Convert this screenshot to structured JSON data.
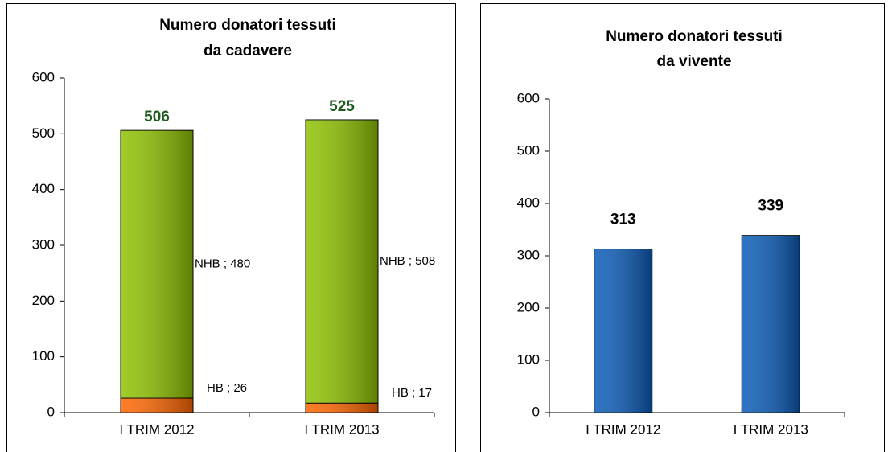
{
  "chart_data": [
    {
      "type": "stacked_bar",
      "title": [
        "Numero donatori tessuti",
        "da cadavere"
      ],
      "categories": [
        "I TRIM 2012",
        "I TRIM 2013"
      ],
      "series": [
        {
          "name": "HB",
          "color": "#ff6600",
          "values": [
            26,
            17
          ],
          "value_labels": [
            "HB ; 26",
            "HB ; 17"
          ]
        },
        {
          "name": "NHB",
          "color": "#8fc200",
          "values": [
            480,
            508
          ],
          "value_labels": [
            "NHB ; 480",
            "NHB ; 508"
          ]
        }
      ],
      "totals": [
        506,
        525
      ],
      "totals_color": "#1f5c1f",
      "ylim": [
        0,
        600
      ],
      "yticks": [
        0,
        100,
        200,
        300,
        400,
        500,
        600
      ]
    },
    {
      "type": "bar",
      "title": [
        "Numero donatori tessuti",
        "da vivente"
      ],
      "categories": [
        "I TRIM 2012",
        "I TRIM 2013"
      ],
      "values": [
        313,
        339
      ],
      "color": "#0a5cb8",
      "ylim": [
        0,
        600
      ],
      "yticks": [
        0,
        100,
        200,
        300,
        400,
        500,
        600
      ]
    }
  ]
}
